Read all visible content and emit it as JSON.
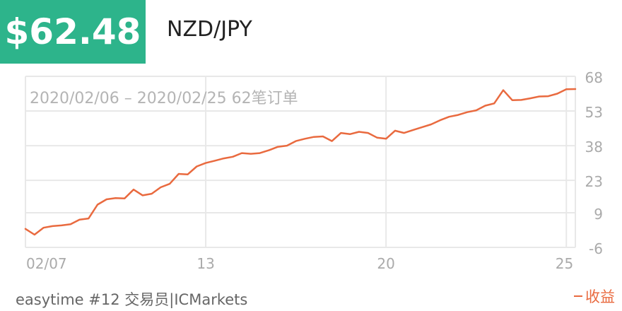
{
  "header": {
    "price": "$62.48",
    "pair": "NZD/JPY"
  },
  "footer": {
    "account": "easytime #12 交易员|ICMarkets",
    "legend_label": "收益"
  },
  "colors": {
    "badge": "#2db48b",
    "line": "#e96a3f",
    "grid": "#e8e8e8",
    "tick_text": "#aaaaaa"
  },
  "chart_data": {
    "type": "line",
    "annotation": "2020/02/06 – 2020/02/25 62笔订单",
    "xlabel": "",
    "ylabel": "",
    "ylim": [
      -6,
      68
    ],
    "y_ticks": [
      -6,
      9,
      23,
      38,
      53,
      68
    ],
    "x_tick_labels": [
      "02/07",
      "13",
      "20",
      "25"
    ],
    "x_tick_index": [
      0,
      20,
      40,
      60
    ],
    "grid": true,
    "legend_position": "bottom-right",
    "series": [
      {
        "name": "收益",
        "values": [
          2.0,
          -0.5,
          2.5,
          3.2,
          3.5,
          4.0,
          6.0,
          6.5,
          12.5,
          14.8,
          15.3,
          15.2,
          19.0,
          16.5,
          17.2,
          20.0,
          21.5,
          25.8,
          25.6,
          29.0,
          30.5,
          31.5,
          32.5,
          33.2,
          34.8,
          34.5,
          34.8,
          36.0,
          37.5,
          38.0,
          40.0,
          41.0,
          41.8,
          42.0,
          40.0,
          43.5,
          43.0,
          44.0,
          43.5,
          41.5,
          41.0,
          44.5,
          43.5,
          44.8,
          46.0,
          47.2,
          49.0,
          50.5,
          51.3,
          52.5,
          53.3,
          55.3,
          56.3,
          62.0,
          57.7,
          57.8,
          58.5,
          59.3,
          59.4,
          60.5,
          62.4,
          62.5
        ]
      }
    ]
  }
}
